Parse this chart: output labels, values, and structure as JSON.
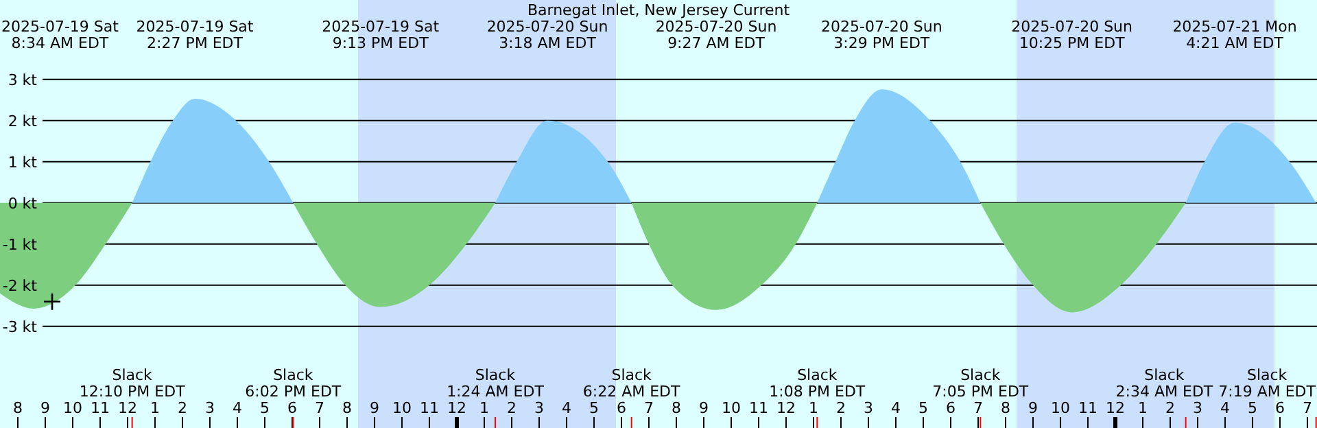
{
  "chart_data": {
    "type": "area",
    "title": "Barnegat Inlet, New Jersey Current",
    "x": [
      "2025-07-19T07:21",
      "2025-07-19T08:34",
      "2025-07-19T10:06",
      "2025-07-19T11:12",
      "2025-07-19T12:10",
      "2025-07-19T12:50",
      "2025-07-19T13:39",
      "2025-07-19T14:27",
      "2025-07-19T15:57",
      "2025-07-19T17:09",
      "2025-07-19T18:02",
      "2025-07-19T18:54",
      "2025-07-19T19:56",
      "2025-07-19T21:13",
      "2025-07-19T23:00",
      "2025-07-20T00:21",
      "2025-07-20T01:24",
      "2025-07-20T02:11",
      "2025-07-20T03:18",
      "2025-07-20T05:30",
      "2025-07-20T06:22",
      "2025-07-20T07:00",
      "2025-07-20T07:51",
      "2025-07-20T09:27",
      "2025-07-20T11:06",
      "2025-07-20T12:21",
      "2025-07-20T13:08",
      "2025-07-20T13:48",
      "2025-07-20T14:30",
      "2025-07-20T15:29",
      "2025-07-20T17:15",
      "2025-07-20T18:21",
      "2025-07-20T19:05",
      "2025-07-20T19:56",
      "2025-07-20T21:00",
      "2025-07-20T22:25",
      "2025-07-21T00:12",
      "2025-07-21T01:30",
      "2025-07-21T02:34",
      "2025-07-21T03:15",
      "2025-07-21T04:21",
      "2025-07-21T06:21",
      "2025-07-21T07:19"
    ],
    "series": [
      {
        "color": "#87cefa",
        "values": [
          null,
          null,
          null,
          null,
          0,
          1,
          2,
          2.53,
          2,
          1,
          0,
          null,
          null,
          null,
          null,
          null,
          0,
          1,
          2,
          1,
          0,
          null,
          null,
          null,
          null,
          null,
          0,
          1,
          2,
          2.76,
          2,
          1,
          0,
          null,
          null,
          null,
          null,
          null,
          0,
          1,
          1.95,
          1,
          0
        ]
      },
      {
        "color": "#7dce7f",
        "values": [
          -2.2,
          -2.57,
          -2,
          -1,
          0,
          null,
          null,
          null,
          null,
          null,
          0,
          -1,
          -2,
          -2.53,
          -2,
          -1,
          0,
          null,
          null,
          null,
          0,
          -1,
          -2,
          -2.6,
          -2,
          -1,
          0,
          null,
          null,
          null,
          null,
          null,
          0,
          -1,
          -2,
          -2.66,
          -2,
          -1,
          0,
          null,
          null,
          null,
          null
        ]
      },
      {
        "type": "scatter",
        "marker": "cross",
        "color": "#000000",
        "x": [
          "2025-07-19T09:15"
        ],
        "values": [
          -2.4
        ]
      }
    ],
    "xlim": [
      "2025-07-19T07:21",
      "2025-07-21T07:21"
    ],
    "ylim": [
      -5.47,
      4.93
    ],
    "yticks": [
      {
        "value": 3,
        "label": "3 kt"
      },
      {
        "value": 2,
        "label": "2 kt"
      },
      {
        "value": 1,
        "label": "1 kt"
      },
      {
        "value": 0,
        "label": "0 kt"
      },
      {
        "value": -1,
        "label": "-1 kt"
      },
      {
        "value": -2,
        "label": "-2 kt"
      },
      {
        "value": -3,
        "label": "-3 kt"
      }
    ],
    "xticks": [
      {
        "value": "2025-07-19T08:00",
        "label": "8"
      },
      {
        "value": "2025-07-19T09:00",
        "label": "9"
      },
      {
        "value": "2025-07-19T10:00",
        "label": "10"
      },
      {
        "value": "2025-07-19T11:00",
        "label": "11"
      },
      {
        "value": "2025-07-19T12:00",
        "label": "12"
      },
      {
        "value": "2025-07-19T13:00",
        "label": "1"
      },
      {
        "value": "2025-07-19T14:00",
        "label": "2"
      },
      {
        "value": "2025-07-19T15:00",
        "label": "3"
      },
      {
        "value": "2025-07-19T16:00",
        "label": "4"
      },
      {
        "value": "2025-07-19T17:00",
        "label": "5"
      },
      {
        "value": "2025-07-19T18:00",
        "label": "6"
      },
      {
        "value": "2025-07-19T19:00",
        "label": "7"
      },
      {
        "value": "2025-07-19T20:00",
        "label": "8"
      },
      {
        "value": "2025-07-19T21:00",
        "label": "9"
      },
      {
        "value": "2025-07-19T22:00",
        "label": "10"
      },
      {
        "value": "2025-07-19T23:00",
        "label": "11"
      },
      {
        "value": "2025-07-20T00:00",
        "label": "12"
      },
      {
        "value": "2025-07-20T01:00",
        "label": "1"
      },
      {
        "value": "2025-07-20T02:00",
        "label": "2"
      },
      {
        "value": "2025-07-20T03:00",
        "label": "3"
      },
      {
        "value": "2025-07-20T04:00",
        "label": "4"
      },
      {
        "value": "2025-07-20T05:00",
        "label": "5"
      },
      {
        "value": "2025-07-20T06:00",
        "label": "6"
      },
      {
        "value": "2025-07-20T07:00",
        "label": "7"
      },
      {
        "value": "2025-07-20T08:00",
        "label": "8"
      },
      {
        "value": "2025-07-20T09:00",
        "label": "9"
      },
      {
        "value": "2025-07-20T10:00",
        "label": "10"
      },
      {
        "value": "2025-07-20T11:00",
        "label": "11"
      },
      {
        "value": "2025-07-20T12:00",
        "label": "12"
      },
      {
        "value": "2025-07-20T13:00",
        "label": "1"
      },
      {
        "value": "2025-07-20T14:00",
        "label": "2"
      },
      {
        "value": "2025-07-20T15:00",
        "label": "3"
      },
      {
        "value": "2025-07-20T16:00",
        "label": "4"
      },
      {
        "value": "2025-07-20T17:00",
        "label": "5"
      },
      {
        "value": "2025-07-20T18:00",
        "label": "6"
      },
      {
        "value": "2025-07-20T19:00",
        "label": "7"
      },
      {
        "value": "2025-07-20T20:00",
        "label": "8"
      },
      {
        "value": "2025-07-20T21:00",
        "label": "9"
      },
      {
        "value": "2025-07-20T22:00",
        "label": "10"
      },
      {
        "value": "2025-07-20T23:00",
        "label": "11"
      },
      {
        "value": "2025-07-21T00:00",
        "label": "12"
      },
      {
        "value": "2025-07-21T01:00",
        "label": "1"
      },
      {
        "value": "2025-07-21T02:00",
        "label": "2"
      },
      {
        "value": "2025-07-21T03:00",
        "label": "3"
      },
      {
        "value": "2025-07-21T04:00",
        "label": "4"
      },
      {
        "value": "2025-07-21T05:00",
        "label": "5"
      },
      {
        "value": "2025-07-21T06:00",
        "label": "6"
      },
      {
        "value": "2025-07-21T07:00",
        "label": "7"
      }
    ],
    "grid": "y",
    "bands": [
      {
        "axis": "x",
        "from": "2025-07-19T20:24",
        "to": "2025-07-20T05:48",
        "color": "#cae0fc"
      },
      {
        "axis": "x",
        "from": "2025-07-20T20:24",
        "to": "2025-07-21T05:48",
        "color": "#cae0fc"
      }
    ],
    "annotations": [
      "2025-07-19 Sat\n8:34 AM EDT",
      "2025-07-19 Sat\n2:27 PM EDT",
      "2025-07-19 Sat\n9:13 PM EDT",
      "2025-07-20 Sun\n3:18 AM EDT",
      "2025-07-20 Sun\n9:27 AM EDT",
      "2025-07-20 Sun\n3:29 PM EDT",
      "2025-07-20 Sun\n10:25 PM EDT",
      "2025-07-21 Mon\n4:21 AM EDT",
      "Slack\n12:10 PM EDT",
      "Slack\n6:02 PM EDT",
      "Slack\n1:24 AM EDT",
      "Slack\n6:22 AM EDT",
      "Slack\n1:08 PM EDT",
      "Slack\n7:05 PM EDT",
      "Slack\n2:34 AM EDT",
      "Slack\n7:19 AM EDT"
    ]
  }
}
